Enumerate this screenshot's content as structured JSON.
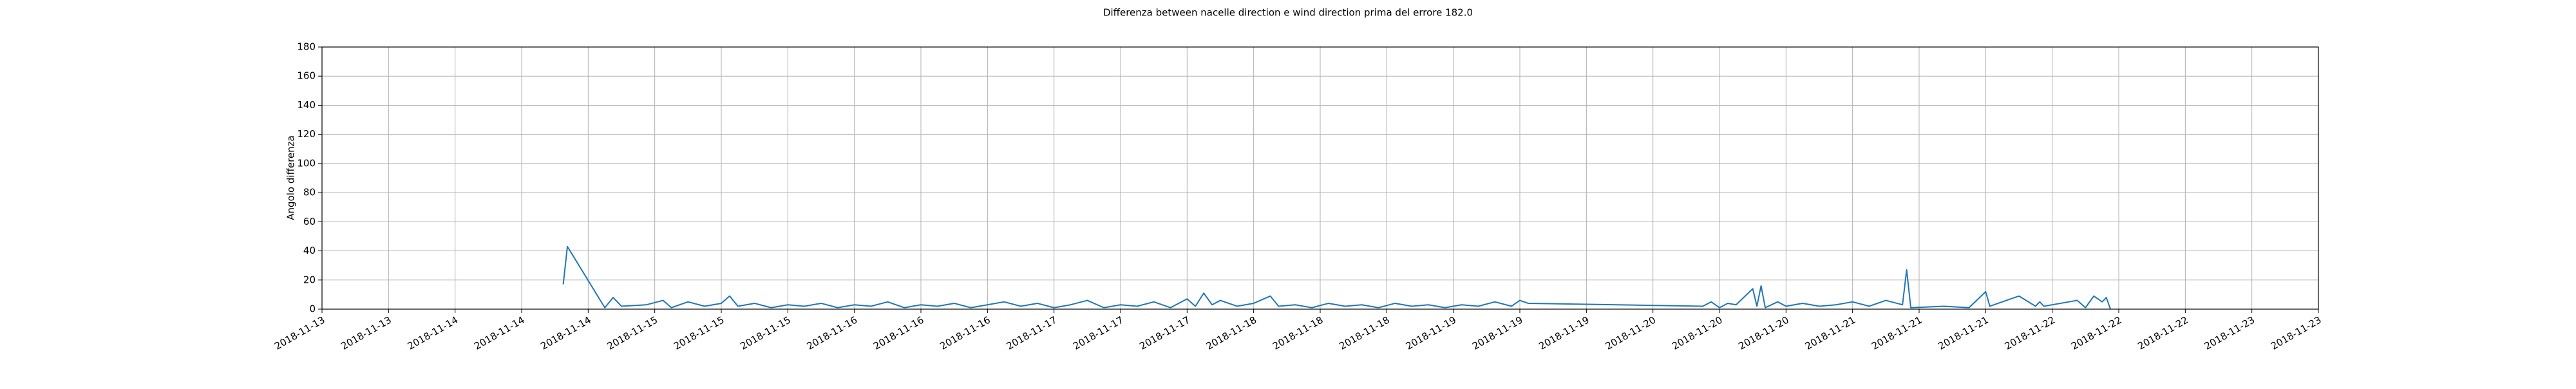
{
  "chart_data": {
    "type": "line",
    "title": "Differenza between nacelle direction e wind direction prima del errore 182.0",
    "y_label": "Angolo differenza",
    "grid": true,
    "ylim": [
      0,
      180
    ],
    "yticks": [
      0,
      20,
      40,
      60,
      80,
      100,
      120,
      140,
      160,
      180
    ],
    "xlim": [
      "2018-11-13T08:00",
      "2018-11-23T08:00"
    ],
    "xticks": [
      {
        "value": "2018-11-13T08:00",
        "label": "2018-11-13"
      },
      {
        "value": "2018-11-13T16:00",
        "label": "2018-11-13"
      },
      {
        "value": "2018-11-14T00:00",
        "label": "2018-11-14"
      },
      {
        "value": "2018-11-14T08:00",
        "label": "2018-11-14"
      },
      {
        "value": "2018-11-14T16:00",
        "label": "2018-11-14"
      },
      {
        "value": "2018-11-15T00:00",
        "label": "2018-11-15"
      },
      {
        "value": "2018-11-15T08:00",
        "label": "2018-11-15"
      },
      {
        "value": "2018-11-15T16:00",
        "label": "2018-11-15"
      },
      {
        "value": "2018-11-16T00:00",
        "label": "2018-11-16"
      },
      {
        "value": "2018-11-16T08:00",
        "label": "2018-11-16"
      },
      {
        "value": "2018-11-16T16:00",
        "label": "2018-11-16"
      },
      {
        "value": "2018-11-17T00:00",
        "label": "2018-11-17"
      },
      {
        "value": "2018-11-17T08:00",
        "label": "2018-11-17"
      },
      {
        "value": "2018-11-17T16:00",
        "label": "2018-11-17"
      },
      {
        "value": "2018-11-18T00:00",
        "label": "2018-11-18"
      },
      {
        "value": "2018-11-18T08:00",
        "label": "2018-11-18"
      },
      {
        "value": "2018-11-18T16:00",
        "label": "2018-11-18"
      },
      {
        "value": "2018-11-19T00:00",
        "label": "2018-11-19"
      },
      {
        "value": "2018-11-19T08:00",
        "label": "2018-11-19"
      },
      {
        "value": "2018-11-19T16:00",
        "label": "2018-11-19"
      },
      {
        "value": "2018-11-20T00:00",
        "label": "2018-11-20"
      },
      {
        "value": "2018-11-20T08:00",
        "label": "2018-11-20"
      },
      {
        "value": "2018-11-20T16:00",
        "label": "2018-11-20"
      },
      {
        "value": "2018-11-21T00:00",
        "label": "2018-11-21"
      },
      {
        "value": "2018-11-21T08:00",
        "label": "2018-11-21"
      },
      {
        "value": "2018-11-21T16:00",
        "label": "2018-11-21"
      },
      {
        "value": "2018-11-22T00:00",
        "label": "2018-11-22"
      },
      {
        "value": "2018-11-22T08:00",
        "label": "2018-11-22"
      },
      {
        "value": "2018-11-22T16:00",
        "label": "2018-11-22"
      },
      {
        "value": "2018-11-23T00:00",
        "label": "2018-11-23"
      },
      {
        "value": "2018-11-23T08:00",
        "label": "2018-11-23"
      }
    ],
    "x": [
      "2018-11-14T13:00",
      "2018-11-14T13:30",
      "2018-11-14T18:00",
      "2018-11-14T19:00",
      "2018-11-14T20:00",
      "2018-11-14T23:00",
      "2018-11-15T01:00",
      "2018-11-15T02:00",
      "2018-11-15T04:00",
      "2018-11-15T06:00",
      "2018-11-15T08:00",
      "2018-11-15T09:00",
      "2018-11-15T10:00",
      "2018-11-15T12:00",
      "2018-11-15T14:00",
      "2018-11-15T16:00",
      "2018-11-15T18:00",
      "2018-11-15T20:00",
      "2018-11-15T22:00",
      "2018-11-16T00:00",
      "2018-11-16T02:00",
      "2018-11-16T04:00",
      "2018-11-16T06:00",
      "2018-11-16T08:00",
      "2018-11-16T10:00",
      "2018-11-16T12:00",
      "2018-11-16T14:00",
      "2018-11-16T16:00",
      "2018-11-16T18:00",
      "2018-11-16T20:00",
      "2018-11-16T22:00",
      "2018-11-17T00:00",
      "2018-11-17T02:00",
      "2018-11-17T04:00",
      "2018-11-17T06:00",
      "2018-11-17T08:00",
      "2018-11-17T10:00",
      "2018-11-17T12:00",
      "2018-11-17T14:00",
      "2018-11-17T16:00",
      "2018-11-17T17:00",
      "2018-11-17T18:00",
      "2018-11-17T19:00",
      "2018-11-17T20:00",
      "2018-11-17T22:00",
      "2018-11-18T00:00",
      "2018-11-18T02:00",
      "2018-11-18T03:00",
      "2018-11-18T05:00",
      "2018-11-18T07:00",
      "2018-11-18T09:00",
      "2018-11-18T11:00",
      "2018-11-18T13:00",
      "2018-11-18T15:00",
      "2018-11-18T17:00",
      "2018-11-18T19:00",
      "2018-11-18T21:00",
      "2018-11-18T23:00",
      "2018-11-19T01:00",
      "2018-11-19T03:00",
      "2018-11-19T05:00",
      "2018-11-19T07:00",
      "2018-11-19T08:00",
      "2018-11-19T09:00",
      "2018-11-20T06:00",
      "2018-11-20T07:00",
      "2018-11-20T08:00",
      "2018-11-20T09:00",
      "2018-11-20T10:00",
      "2018-11-20T12:00",
      "2018-11-20T12:30",
      "2018-11-20T13:00",
      "2018-11-20T13:30",
      "2018-11-20T15:00",
      "2018-11-20T16:00",
      "2018-11-20T18:00",
      "2018-11-20T20:00",
      "2018-11-20T22:00",
      "2018-11-21T00:00",
      "2018-11-21T02:00",
      "2018-11-21T04:00",
      "2018-11-21T06:00",
      "2018-11-21T06:30",
      "2018-11-21T07:00",
      "2018-11-21T11:00",
      "2018-11-21T14:00",
      "2018-11-21T16:00",
      "2018-11-21T16:30",
      "2018-11-21T20:00",
      "2018-11-21T22:00",
      "2018-11-21T22:30",
      "2018-11-21T23:00",
      "2018-11-22T03:00",
      "2018-11-22T04:00",
      "2018-11-22T05:00",
      "2018-11-22T06:00",
      "2018-11-22T06:30",
      "2018-11-22T07:00"
    ],
    "series": [
      {
        "color": "#1f77b4",
        "values": [
          17,
          43,
          1,
          8,
          2,
          3,
          6,
          1,
          5,
          2,
          4,
          9,
          2,
          4,
          1,
          3,
          2,
          4,
          1,
          3,
          2,
          5,
          1,
          3,
          2,
          4,
          1,
          3,
          5,
          2,
          4,
          1,
          3,
          6,
          1,
          3,
          2,
          5,
          1,
          7,
          2,
          11,
          3,
          6,
          2,
          4,
          9,
          2,
          3,
          1,
          4,
          2,
          3,
          1,
          4,
          2,
          3,
          1,
          3,
          2,
          5,
          2,
          6,
          4,
          2,
          5,
          1,
          4,
          3,
          14,
          2,
          16,
          1,
          5,
          2,
          4,
          2,
          3,
          5,
          2,
          6,
          3,
          27,
          1,
          2,
          1,
          12,
          2,
          9,
          2,
          5,
          2,
          6,
          1,
          9,
          5,
          8,
          0
        ]
      }
    ]
  }
}
